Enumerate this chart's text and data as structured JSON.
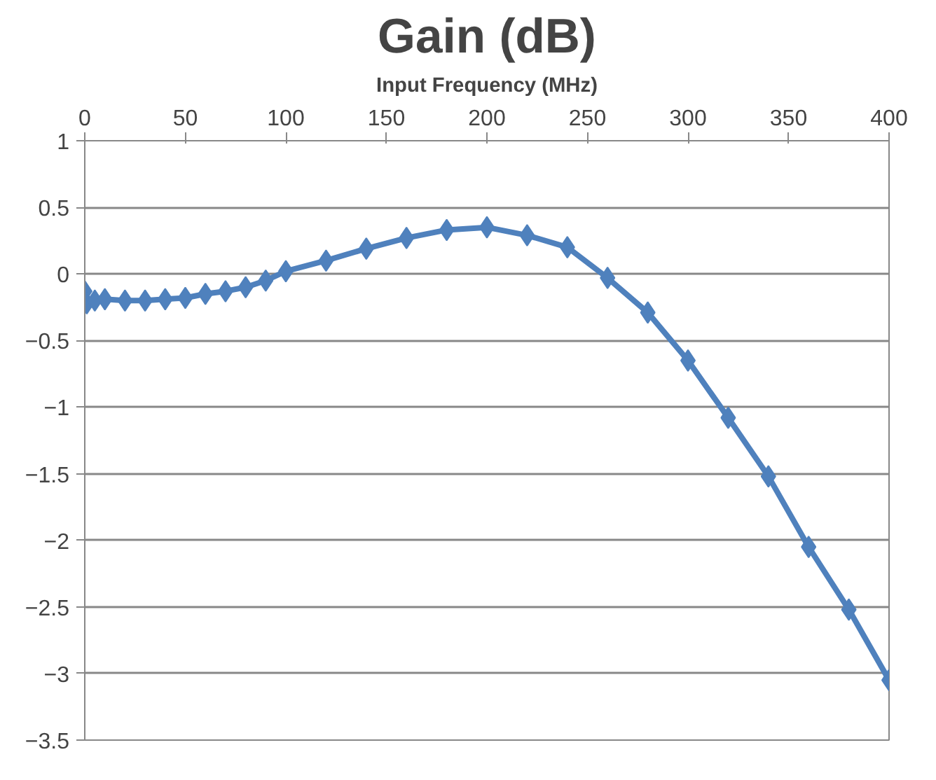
{
  "chart_data": {
    "type": "line",
    "title": "Gain (dB)",
    "xlabel": "Input Frequency (MHz)",
    "x": [
      0,
      1,
      5,
      10,
      20,
      30,
      40,
      50,
      60,
      70,
      80,
      90,
      100,
      120,
      140,
      160,
      180,
      200,
      220,
      240,
      260,
      280,
      300,
      320,
      340,
      360,
      380,
      400
    ],
    "series": [
      {
        "color": "#4f81bd",
        "values": [
          -0.13,
          -0.22,
          -0.2,
          -0.19,
          -0.2,
          -0.2,
          -0.19,
          -0.18,
          -0.15,
          -0.13,
          -0.1,
          -0.05,
          0.02,
          0.1,
          0.19,
          0.27,
          0.33,
          0.35,
          0.29,
          0.2,
          -0.03,
          -0.29,
          -0.65,
          -1.08,
          -1.52,
          -2.05,
          -2.52,
          -3.05
        ]
      }
    ],
    "xlim": [
      0,
      400
    ],
    "xticks": [
      0,
      50,
      100,
      150,
      200,
      250,
      300,
      350,
      400
    ],
    "ylim": [
      -3.5,
      1
    ],
    "yticks": [
      -3.5,
      -3,
      -2.5,
      -2,
      -1.5,
      -1,
      -0.5,
      0,
      0.5,
      1
    ],
    "grid": "y",
    "marker": "diamond",
    "line_style": "solid"
  }
}
